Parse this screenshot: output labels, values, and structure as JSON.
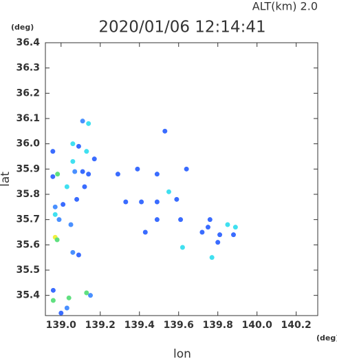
{
  "chart_data": {
    "type": "scatter",
    "title": "2020/01/06 12:14:41",
    "subtitle": "ALT(km)  2.0",
    "y_unit": "(deg)",
    "x_unit": "(deg)",
    "xlabel": "lon",
    "ylabel": "lat",
    "xlim": [
      138.92,
      140.31
    ],
    "ylim": [
      35.32,
      36.4
    ],
    "xticks": [
      {
        "value": 139,
        "label": "139.0"
      },
      139.2,
      139.4,
      139.6,
      139.8,
      {
        "value": 140,
        "label": "140.0"
      },
      140.2
    ],
    "yticks": [
      36.4,
      36.3,
      36.2,
      36.1,
      {
        "value": 36,
        "label": "36.0"
      },
      35.9,
      35.8,
      35.7,
      35.6,
      35.5,
      35.4
    ],
    "grid": false,
    "x": [
      138.958,
      138.958,
      138.982,
      139.03,
      138.97,
      139.01,
      138.97,
      138.99,
      139.05,
      138.97,
      138.98,
      139.06,
      139.09,
      139.06,
      139.09,
      139.06,
      139.07,
      139.11,
      139.14,
      139.13,
      139.17,
      139.11,
      139.14,
      139.12,
      139.08,
      138.96,
      138.96,
      139.04,
      139.03,
      139.13,
      139.15,
      139.0,
      139.29,
      139.39,
      139.33,
      139.41,
      139.49,
      139.49,
      139.53,
      139.64,
      139.55,
      139.59,
      139.43,
      139.49,
      139.61,
      139.62,
      139.72,
      139.76,
      139.81,
      139.8,
      139.77,
      139.85,
      139.89,
      139.88,
      139.75
    ],
    "y": [
      35.97,
      35.87,
      35.88,
      35.83,
      35.75,
      35.76,
      35.72,
      35.7,
      35.68,
      35.63,
      35.62,
      35.57,
      35.56,
      36.0,
      35.99,
      35.93,
      35.89,
      36.09,
      36.08,
      35.97,
      35.94,
      35.89,
      35.88,
      35.83,
      35.78,
      35.42,
      35.38,
      35.39,
      35.35,
      35.41,
      35.4,
      35.33,
      35.88,
      35.9,
      35.77,
      35.77,
      35.77,
      35.88,
      36.05,
      35.9,
      35.81,
      35.78,
      35.65,
      35.7,
      35.7,
      35.59,
      35.65,
      35.7,
      35.64,
      35.61,
      35.55,
      35.68,
      35.67,
      35.64,
      35.67
    ],
    "colors": [
      "#3a6cff",
      "#3a6cff",
      "#60e080",
      "#40e0f0",
      "#4a90ff",
      "#3a6cff",
      "#40e0f0",
      "#4a90ff",
      "#4a90ff",
      "#f0f040",
      "#60e080",
      "#4a90ff",
      "#3a6cff",
      "#40e0f0",
      "#3a6cff",
      "#40e0f0",
      "#4a90ff",
      "#4a90ff",
      "#40e0f0",
      "#40e0f0",
      "#3a6cff",
      "#3a6cff",
      "#3a6cff",
      "#3a6cff",
      "#3a6cff",
      "#3a6cff",
      "#60e080",
      "#60e080",
      "#4a90ff",
      "#60e080",
      "#4a90ff",
      "#3a6cff",
      "#3a6cff",
      "#3a6cff",
      "#3a6cff",
      "#3a6cff",
      "#3a6cff",
      "#3a6cff",
      "#3a6cff",
      "#3a6cff",
      "#40e0f0",
      "#3a6cff",
      "#3a6cff",
      "#3a6cff",
      "#3a6cff",
      "#40e0f0",
      "#3a6cff",
      "#3a6cff",
      "#3a6cff",
      "#3a6cff",
      "#40e0f0",
      "#40e0f0",
      "#40e0f0",
      "#3a6cff",
      "#3a6cff"
    ]
  }
}
